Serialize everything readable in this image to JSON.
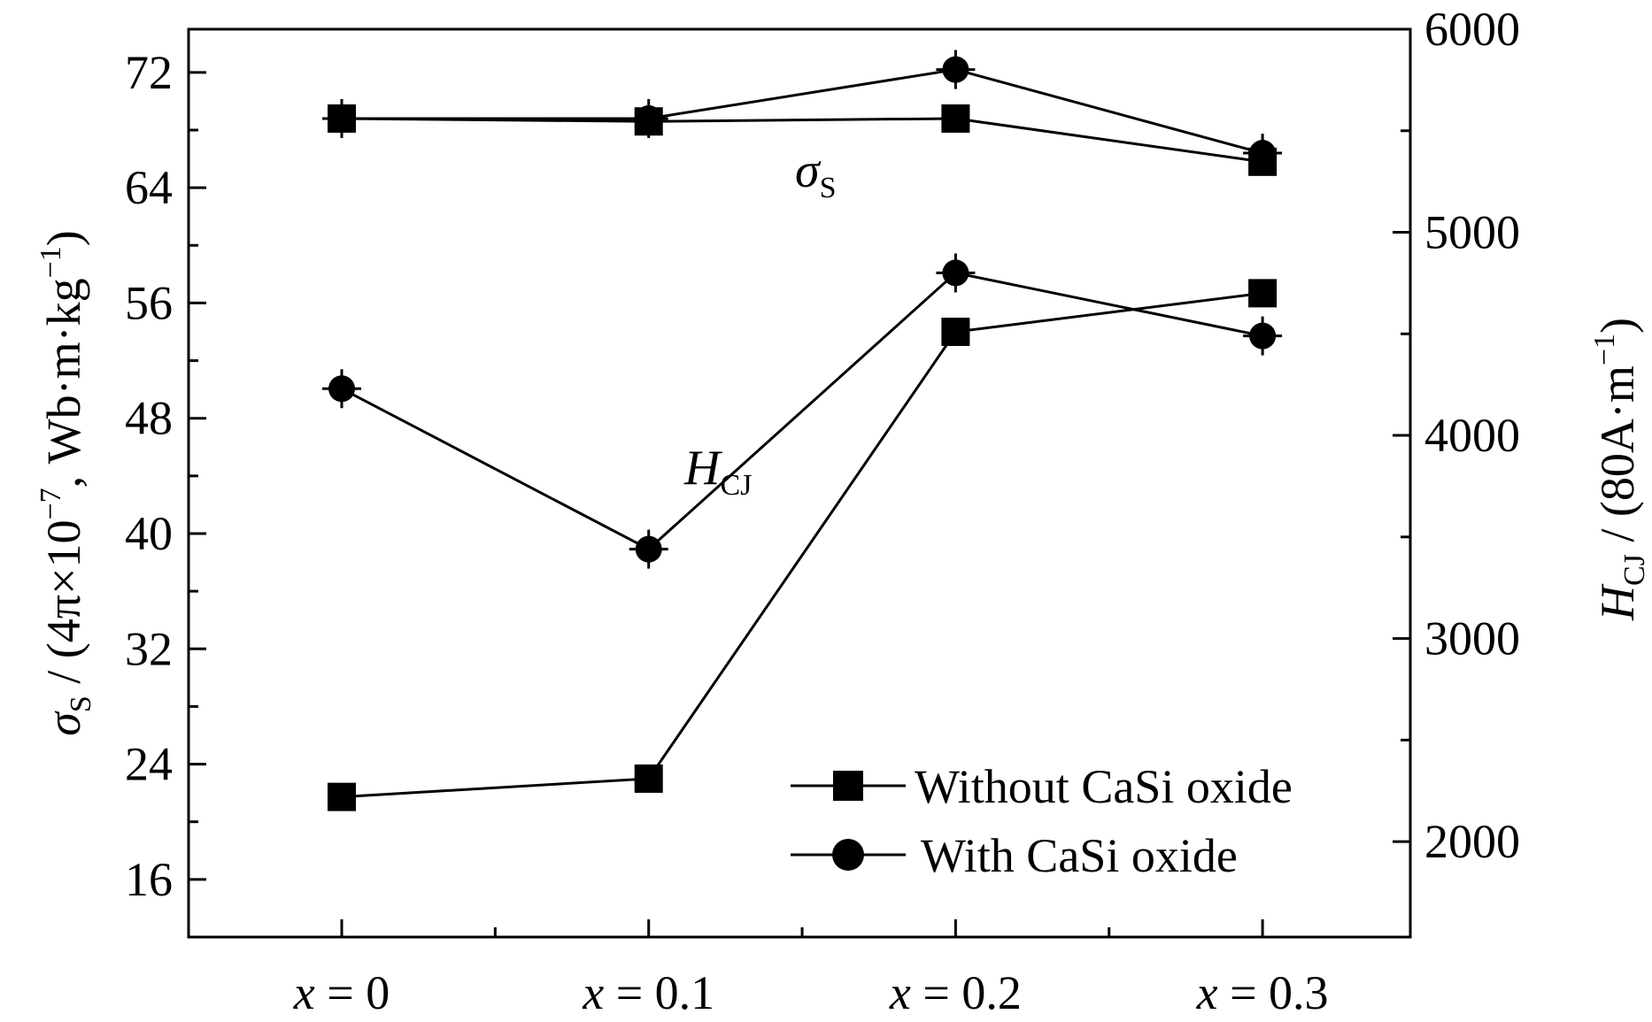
{
  "chart_data": {
    "type": "line",
    "categories": [
      "x = 0",
      "x = 0.1",
      "x = 0.2",
      "x = 0.3"
    ],
    "category_parts": [
      {
        "var": "x",
        "eq": " = 0"
      },
      {
        "var": "x",
        "eq": " = 0.1"
      },
      {
        "var": "x",
        "eq": " = 0.2"
      },
      {
        "var": "x",
        "eq": " = 0.3"
      }
    ],
    "y_left": {
      "label_symbol": "σ",
      "label_sub": "S",
      "label_rest": " / (4π×10",
      "label_sup": "−7",
      "label_tail": ", Wb·m·kg",
      "label_sup2": "−1",
      "label_close": ")",
      "ylim": [
        12,
        75
      ],
      "ticks": [
        16,
        24,
        32,
        40,
        48,
        56,
        64,
        72
      ]
    },
    "y_right": {
      "label_symbol": "H",
      "label_sub": "CJ",
      "label_rest": " / (80A·m",
      "label_sup": "−1",
      "label_close": ")",
      "ylim": [
        1530,
        6000
      ],
      "ticks": [
        2000,
        3000,
        4000,
        5000,
        6000
      ]
    },
    "annotations": [
      {
        "symbol": "σ",
        "sub": "S"
      },
      {
        "symbol": "H",
        "sub": "CJ"
      }
    ],
    "series": [
      {
        "name": "Without CaSi oxide",
        "group": "sigma_s",
        "axis": "left",
        "marker": "square",
        "values": [
          68.8,
          68.6,
          68.8,
          65.8
        ]
      },
      {
        "name": "With CaSi oxide",
        "group": "sigma_s",
        "axis": "left",
        "marker": "circle",
        "values": [
          68.8,
          68.8,
          72.2,
          66.4
        ]
      },
      {
        "name": "Without CaSi oxide",
        "group": "H_CJ",
        "axis": "right",
        "marker": "square",
        "values": [
          2220,
          2310,
          4510,
          4700
        ]
      },
      {
        "name": "With CaSi oxide",
        "group": "H_CJ",
        "axis": "right",
        "marker": "circle",
        "values": [
          4230,
          3440,
          4800,
          4490
        ]
      }
    ],
    "legend": {
      "position": "bottom-right",
      "entries": [
        {
          "label": "Without CaSi oxide",
          "marker": "square"
        },
        {
          "label": "With CaSi oxide",
          "marker": "circle"
        }
      ]
    }
  }
}
